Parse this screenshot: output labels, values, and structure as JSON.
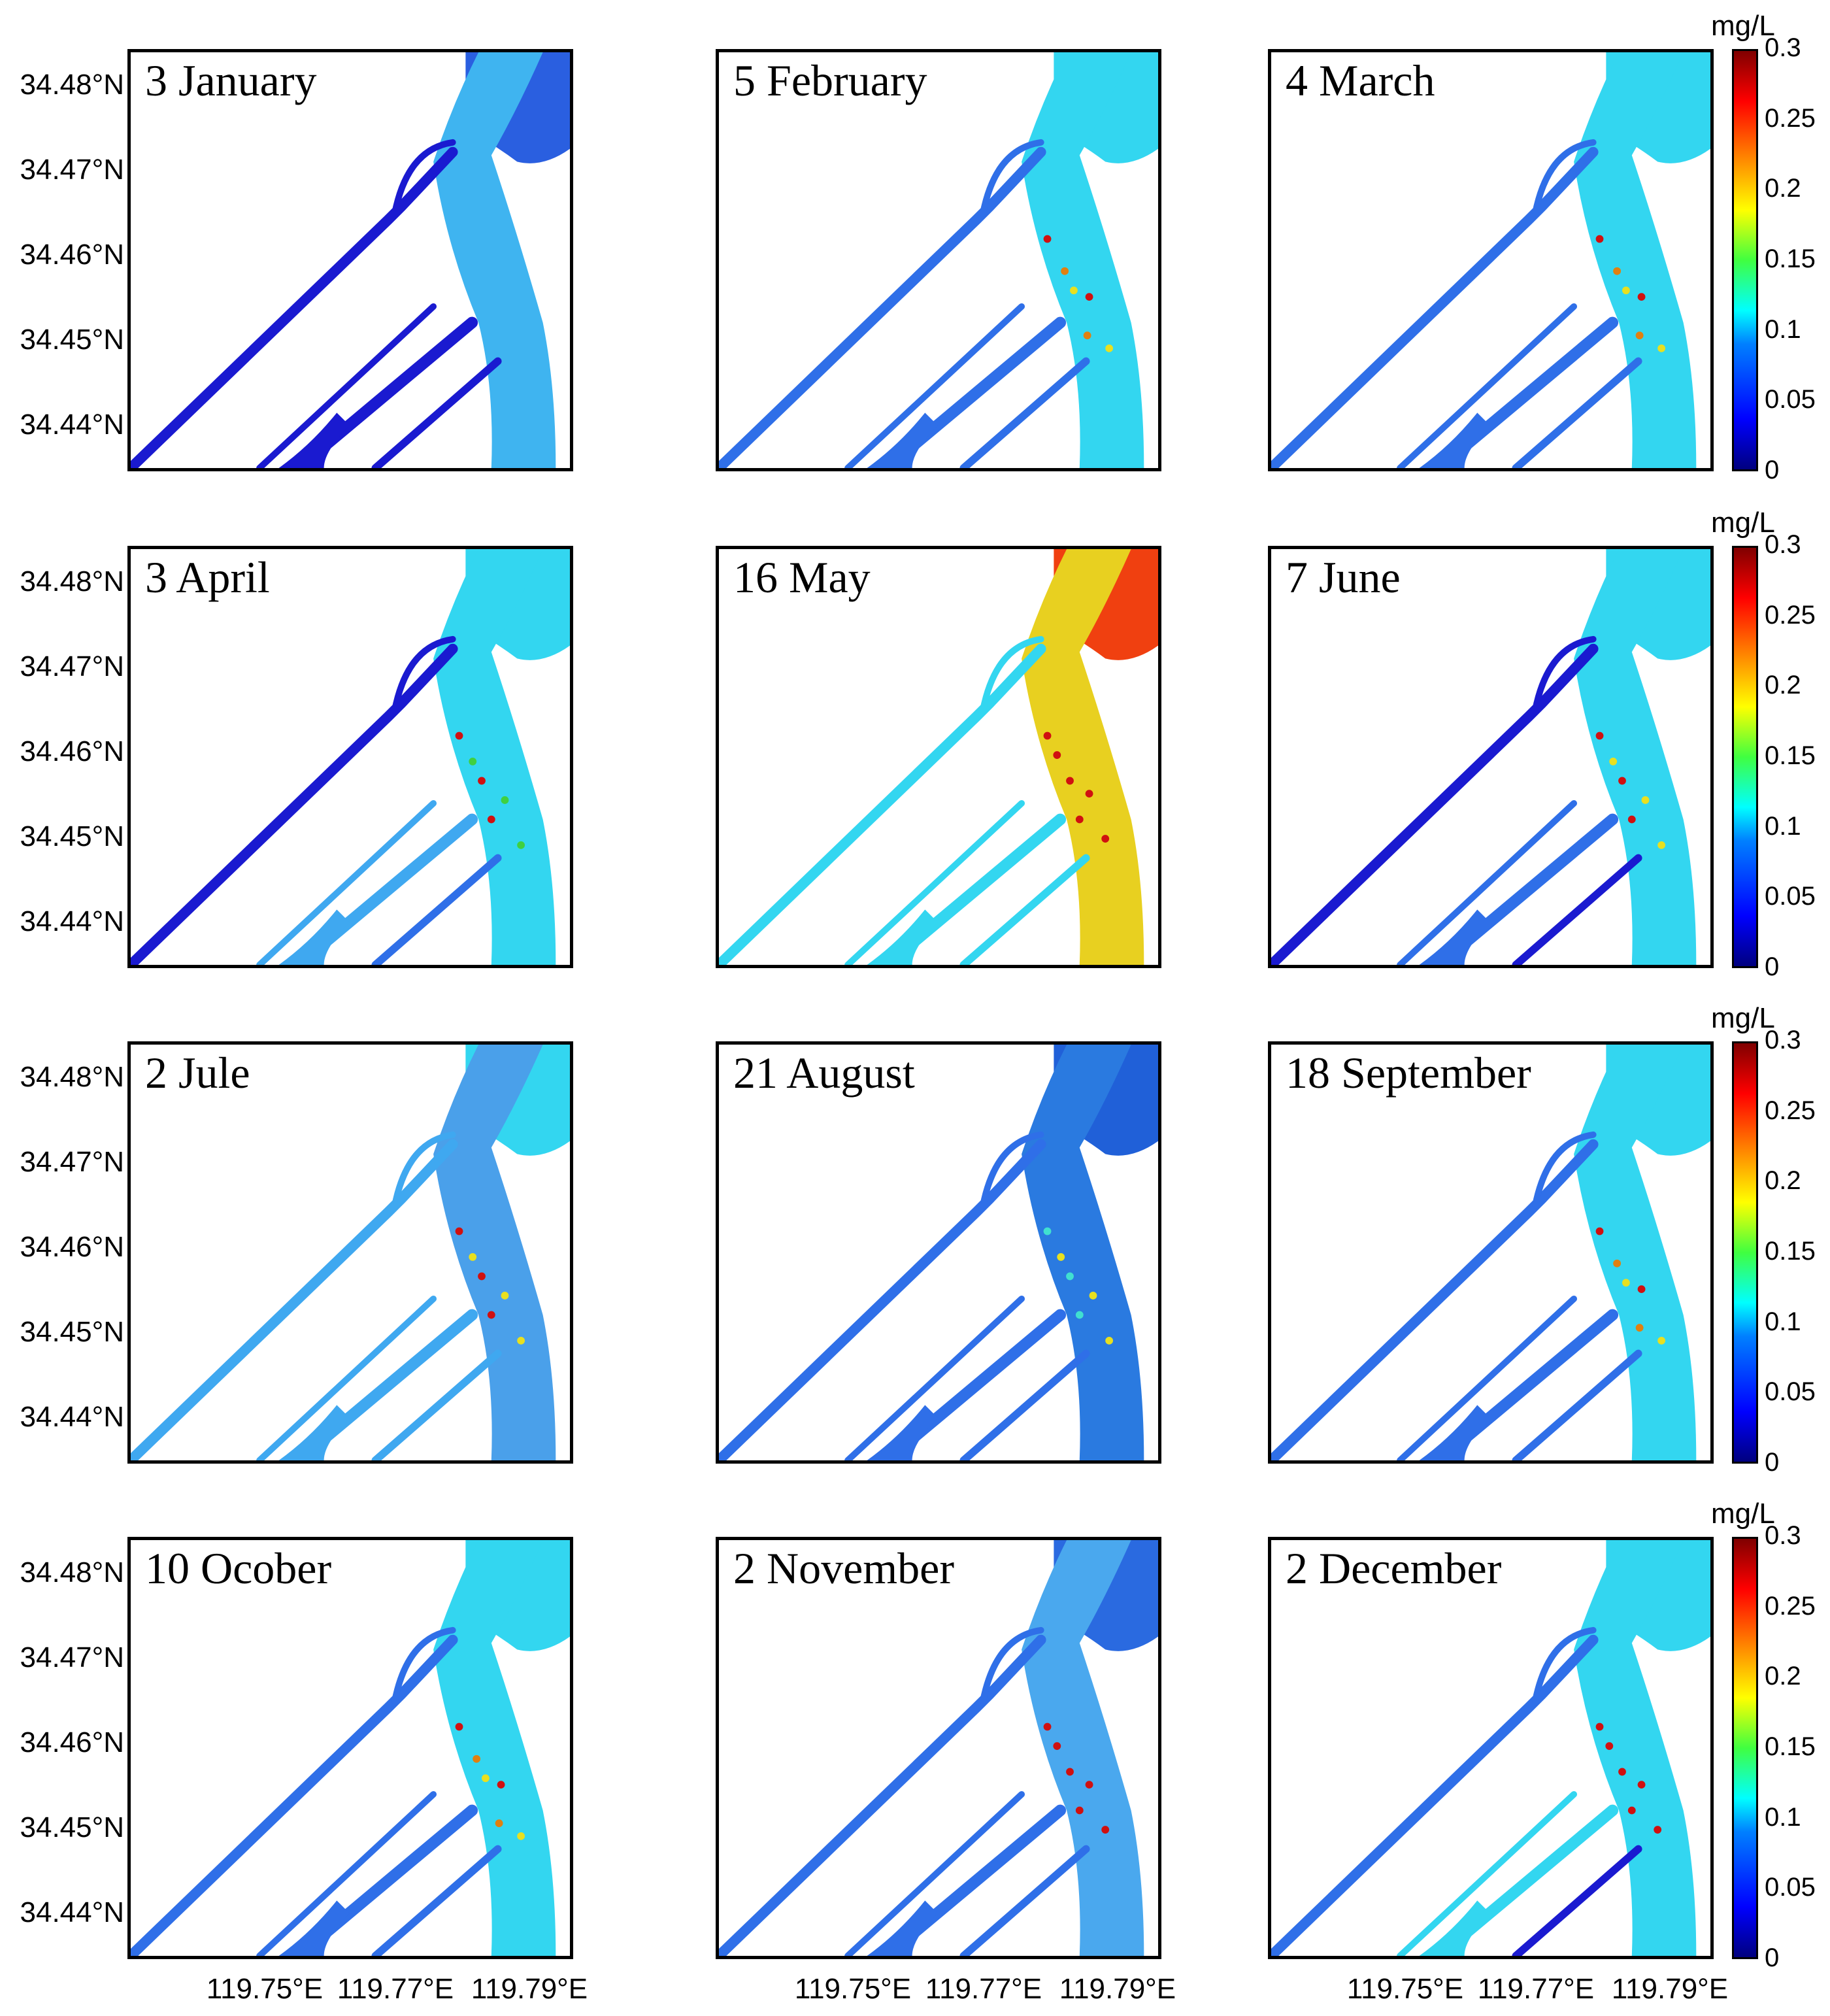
{
  "figure": {
    "panels": [
      {
        "title": "3 January",
        "state": "low"
      },
      {
        "title": "5 February",
        "state": "normal"
      },
      {
        "title": "4 March",
        "state": "normal"
      },
      {
        "title": "3 April",
        "state": "april"
      },
      {
        "title": "16 May",
        "state": "may"
      },
      {
        "title": "7 June",
        "state": "june"
      },
      {
        "title": "2 Jule",
        "state": "july"
      },
      {
        "title": "21 August",
        "state": "august"
      },
      {
        "title": "18 September",
        "state": "normal"
      },
      {
        "title": "10 Ocober",
        "state": "normal"
      },
      {
        "title": "2 November",
        "state": "november"
      },
      {
        "title": "2 December",
        "state": "december"
      }
    ],
    "y_tick_labels": [
      "34.48°N",
      "34.47°N",
      "34.46°N",
      "34.45°N",
      "34.44°N"
    ],
    "x_tick_labels": [
      "119.75°E",
      "119.77°E",
      "119.79°E"
    ],
    "colorbar": {
      "unit": "mg/L",
      "ticks": [
        "0.3",
        "0.25",
        "0.2",
        "0.15",
        "0.1",
        "0.05",
        "0"
      ],
      "min": 0,
      "max": 0.3
    },
    "colors": {
      "very_low": "#1a1ad0",
      "low": "#2f6fe8",
      "mid": "#3fa8f0",
      "normal": "#33d6f0",
      "high": "#e8e020",
      "very_high": "#d01010"
    }
  }
}
